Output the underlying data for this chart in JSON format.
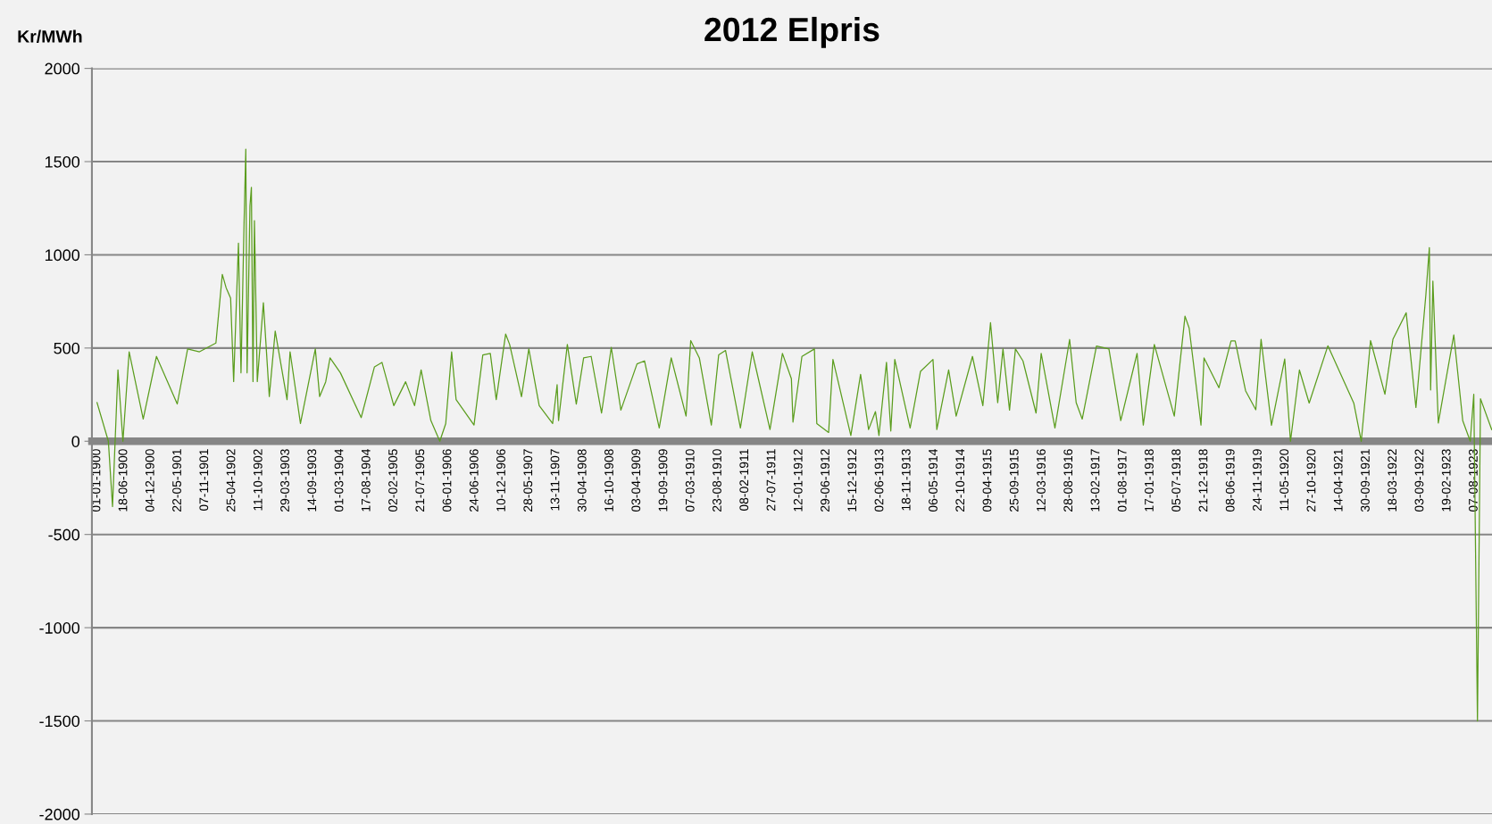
{
  "chart_data": {
    "type": "line",
    "title": "2012 Elpris",
    "ylabel": "Kr/MWh",
    "x": [
      "1900-01-01",
      "1900-03-13",
      "1900-04-08",
      "1900-05-12",
      "1900-06-12",
      "1900-07-21",
      "1900-10-17",
      "1901-01-08",
      "1901-05-18",
      "1901-07-22",
      "1901-10-04",
      "1902-01-15",
      "1902-02-24",
      "1902-03-20",
      "1902-04-17",
      "1902-05-06",
      "1902-06-05",
      "1902-06-21",
      "1902-07-10",
      "1902-07-21",
      "1902-07-29",
      "1902-08-16",
      "1902-08-25",
      "1902-09-04",
      "1902-09-13",
      "1902-10-01",
      "1902-11-08",
      "1902-12-15",
      "1903-01-21",
      "1903-04-05",
      "1903-04-24",
      "1903-06-28",
      "1903-09-29",
      "1903-10-26",
      "1903-12-03",
      "1903-12-30",
      "1904-03-04",
      "1904-07-12",
      "1904-10-03",
      "1904-11-19",
      "1905-02-01",
      "1905-04-16",
      "1905-06-11",
      "1905-07-22",
      "1905-09-21",
      "1905-11-16",
      "1905-12-23",
      "1906-01-29",
      "1906-02-26",
      "1906-06-18",
      "1906-08-12",
      "1906-09-28",
      "1906-11-04",
      "1907-01-02",
      "1907-01-27",
      "1907-04-11",
      "1907-05-27",
      "1907-07-31",
      "1907-10-23",
      "1907-11-20",
      "1907-11-29",
      "1908-01-23",
      "1908-03-19",
      "1908-05-04",
      "1908-06-20",
      "1908-08-24",
      "1908-10-24",
      "1908-12-23",
      "1909-04-03",
      "1909-05-20",
      "1909-08-20",
      "1909-11-03",
      "1910-02-04",
      "1910-03-05",
      "1910-04-28",
      "1910-07-12",
      "1910-08-27",
      "1910-10-09",
      "1911-01-10",
      "1911-03-25",
      "1911-07-14",
      "1911-09-30",
      "1911-11-25",
      "1911-12-05",
      "1912-01-30",
      "1912-04-17",
      "1912-05-02",
      "1912-07-15",
      "1912-08-11",
      "1912-12-01",
      "1913-01-31",
      "1913-03-22",
      "1913-05-04",
      "1913-05-26",
      "1913-07-12",
      "1913-08-08",
      "1913-09-02",
      "1913-12-07",
      "1914-02-10",
      "1914-04-29",
      "1914-05-23",
      "1914-08-05",
      "1914-09-21",
      "1915-01-01",
      "1915-03-07",
      "1915-04-24",
      "1915-06-08",
      "1915-07-11",
      "1915-08-21",
      "1915-09-27",
      "1915-11-13",
      "1916-02-03",
      "1916-03-06",
      "1916-05-31",
      "1916-08-31",
      "1916-10-11",
      "1916-11-18",
      "1917-02-15",
      "1917-05-04",
      "1917-07-17",
      "1917-10-27",
      "1917-12-05",
      "1918-02-12",
      "1918-06-17",
      "1918-08-23",
      "1918-09-18",
      "1918-12-01",
      "1918-12-20",
      "1919-03-23",
      "1919-06-07",
      "1919-07-03",
      "1919-09-06",
      "1919-11-09",
      "1919-12-12",
      "1920-02-15",
      "1920-05-08",
      "1920-06-13",
      "1920-08-08",
      "1920-10-08",
      "1921-02-02",
      "1921-07-14",
      "1921-08-30",
      "1921-10-27",
      "1922-01-25",
      "1922-03-16",
      "1922-06-07",
      "1922-08-07",
      "1922-10-08",
      "1922-10-30",
      "1922-11-07",
      "1922-11-21",
      "1922-12-25",
      "1923-04-01",
      "1923-05-27",
      "1923-07-13",
      "1923-08-04",
      "1923-08-27",
      "1923-09-15",
      "1923-11-24"
    ],
    "series": [
      {
        "color": "#5b9d1e",
        "values": [
          207,
          0,
          -350,
          383,
          0,
          480,
          119,
          455,
          200,
          495,
          480,
          527,
          895,
          823,
          767,
          320,
          1063,
          367,
          1167,
          1567,
          367,
          1263,
          1362,
          320,
          1183,
          320,
          743,
          240,
          591,
          223,
          480,
          95,
          495,
          240,
          319,
          447,
          367,
          127,
          399,
          423,
          191,
          319,
          191,
          383,
          111,
          0,
          95,
          479,
          223,
          87,
          463,
          471,
          223,
          575,
          519,
          239,
          495,
          191,
          95,
          303,
          111,
          519,
          199,
          447,
          455,
          151,
          503,
          167,
          415,
          431,
          71,
          447,
          135,
          540,
          447,
          87,
          463,
          487,
          71,
          479,
          63,
          471,
          335,
          103,
          455,
          495,
          95,
          47,
          439,
          31,
          359,
          63,
          159,
          31,
          423,
          55,
          439,
          71,
          375,
          439,
          63,
          383,
          135,
          455,
          191,
          636,
          207,
          495,
          167,
          495,
          431,
          151,
          471,
          71,
          546,
          207,
          119,
          511,
          495,
          111,
          471,
          87,
          519,
          135,
          671,
          607,
          87,
          447,
          287,
          538,
          538,
          271,
          169,
          547,
          86,
          441,
          0,
          382,
          205,
          512,
          205,
          0,
          540,
          252,
          547,
          689,
          181,
          784,
          1039,
          275,
          859,
          98,
          571,
          110,
          0,
          252,
          -1500,
          228,
          63
        ]
      }
    ],
    "xlim": [
      "1899-11-30",
      "1923-11-26"
    ],
    "xticks": [
      {
        "value": "1900-01-01",
        "label": "01-01-1900"
      },
      {
        "value": "1900-06-18",
        "label": "18-06-1900"
      },
      {
        "value": "1900-12-04",
        "label": "04-12-1900"
      },
      {
        "value": "1901-05-22",
        "label": "22-05-1901"
      },
      {
        "value": "1901-11-07",
        "label": "07-11-1901"
      },
      {
        "value": "1902-04-25",
        "label": "25-04-1902"
      },
      {
        "value": "1902-10-11",
        "label": "11-10-1902"
      },
      {
        "value": "1903-03-29",
        "label": "29-03-1903"
      },
      {
        "value": "1903-09-14",
        "label": "14-09-1903"
      },
      {
        "value": "1904-03-01",
        "label": "01-03-1904"
      },
      {
        "value": "1904-08-17",
        "label": "17-08-1904"
      },
      {
        "value": "1905-02-02",
        "label": "02-02-1905"
      },
      {
        "value": "1905-07-21",
        "label": "21-07-1905"
      },
      {
        "value": "1906-01-06",
        "label": "06-01-1906"
      },
      {
        "value": "1906-06-24",
        "label": "24-06-1906"
      },
      {
        "value": "1906-12-10",
        "label": "10-12-1906"
      },
      {
        "value": "1907-05-28",
        "label": "28-05-1907"
      },
      {
        "value": "1907-11-13",
        "label": "13-11-1907"
      },
      {
        "value": "1908-04-30",
        "label": "30-04-1908"
      },
      {
        "value": "1908-10-16",
        "label": "16-10-1908"
      },
      {
        "value": "1909-04-03",
        "label": "03-04-1909"
      },
      {
        "value": "1909-09-19",
        "label": "19-09-1909"
      },
      {
        "value": "1910-03-07",
        "label": "07-03-1910"
      },
      {
        "value": "1910-08-23",
        "label": "23-08-1910"
      },
      {
        "value": "1911-02-08",
        "label": "08-02-1911"
      },
      {
        "value": "1911-07-27",
        "label": "27-07-1911"
      },
      {
        "value": "1912-01-12",
        "label": "12-01-1912"
      },
      {
        "value": "1912-06-29",
        "label": "29-06-1912"
      },
      {
        "value": "1912-12-15",
        "label": "15-12-1912"
      },
      {
        "value": "1913-06-02",
        "label": "02-06-1913"
      },
      {
        "value": "1913-11-18",
        "label": "18-11-1913"
      },
      {
        "value": "1914-05-06",
        "label": "06-05-1914"
      },
      {
        "value": "1914-10-22",
        "label": "22-10-1914"
      },
      {
        "value": "1915-04-09",
        "label": "09-04-1915"
      },
      {
        "value": "1915-09-25",
        "label": "25-09-1915"
      },
      {
        "value": "1916-03-12",
        "label": "12-03-1916"
      },
      {
        "value": "1916-08-28",
        "label": "28-08-1916"
      },
      {
        "value": "1917-02-13",
        "label": "13-02-1917"
      },
      {
        "value": "1917-08-01",
        "label": "01-08-1917"
      },
      {
        "value": "1918-01-17",
        "label": "17-01-1918"
      },
      {
        "value": "1918-07-05",
        "label": "05-07-1918"
      },
      {
        "value": "1918-12-21",
        "label": "21-12-1918"
      },
      {
        "value": "1919-06-08",
        "label": "08-06-1919"
      },
      {
        "value": "1919-11-24",
        "label": "24-11-1919"
      },
      {
        "value": "1920-05-11",
        "label": "11-05-1920"
      },
      {
        "value": "1920-10-27",
        "label": "27-10-1920"
      },
      {
        "value": "1921-04-14",
        "label": "14-04-1921"
      },
      {
        "value": "1921-09-30",
        "label": "30-09-1921"
      },
      {
        "value": "1922-03-18",
        "label": "18-03-1922"
      },
      {
        "value": "1922-09-03",
        "label": "03-09-1922"
      },
      {
        "value": "1923-02-19",
        "label": "19-02-1923"
      },
      {
        "value": "1923-08-07",
        "label": "07-08-1923"
      }
    ],
    "ylim": [
      -2000,
      2000
    ],
    "yticks": [
      -2000,
      -1500,
      -1000,
      -500,
      0,
      500,
      1000,
      1500,
      2000
    ],
    "grid": "y"
  }
}
